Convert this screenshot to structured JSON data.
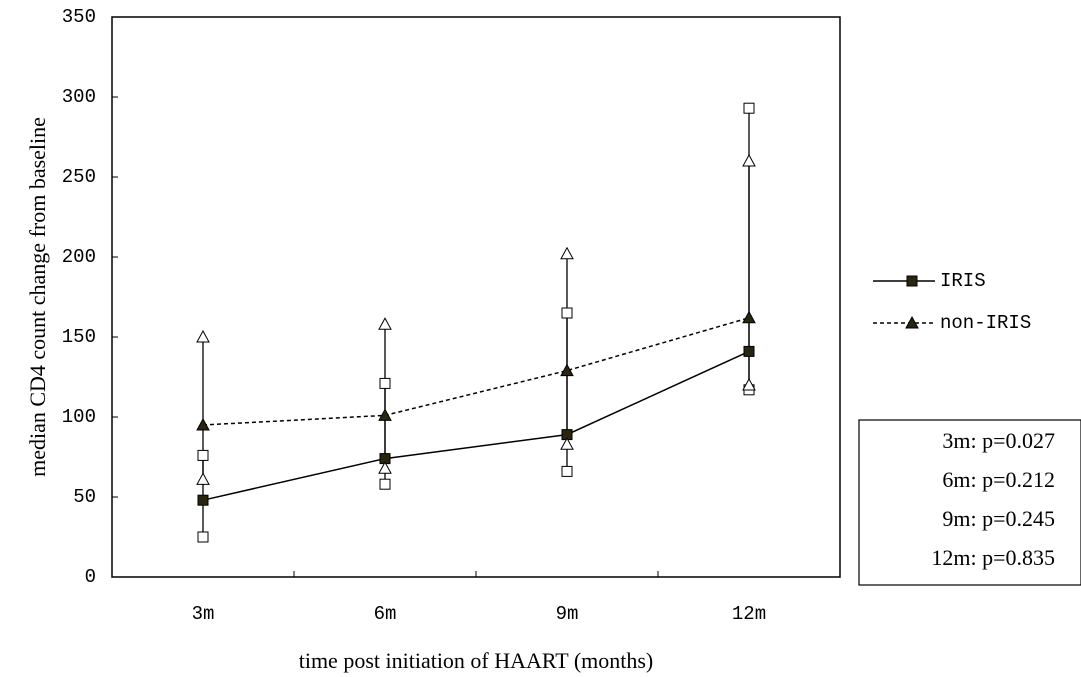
{
  "chart_data": {
    "type": "line",
    "x_label": "time post initiation of HAART (months)",
    "y_label": "median CD4 count change from baseline",
    "categories": [
      "3m",
      "6m",
      "9m",
      "12m"
    ],
    "ylim": [
      0,
      350
    ],
    "yticks": [
      0,
      50,
      100,
      150,
      200,
      250,
      300,
      350
    ],
    "series": [
      {
        "name": "IRIS",
        "color": "#000000",
        "line_style": "solid",
        "marker": "square",
        "values": [
          48,
          74,
          89,
          141
        ],
        "low": [
          25,
          58,
          66,
          117
        ],
        "high": [
          76,
          121,
          165,
          293
        ]
      },
      {
        "name": "non-IRIS",
        "color": "#000000",
        "line_style": "dashed",
        "marker": "triangle",
        "values": [
          95,
          101,
          129,
          162
        ],
        "low": [
          61,
          68,
          83,
          120
        ],
        "high": [
          150,
          158,
          202,
          260
        ]
      }
    ],
    "annotations": [
      "3m: p=0.027",
      "6m: p=0.212",
      "9m: p=0.245",
      "12m: p=0.835"
    ]
  }
}
